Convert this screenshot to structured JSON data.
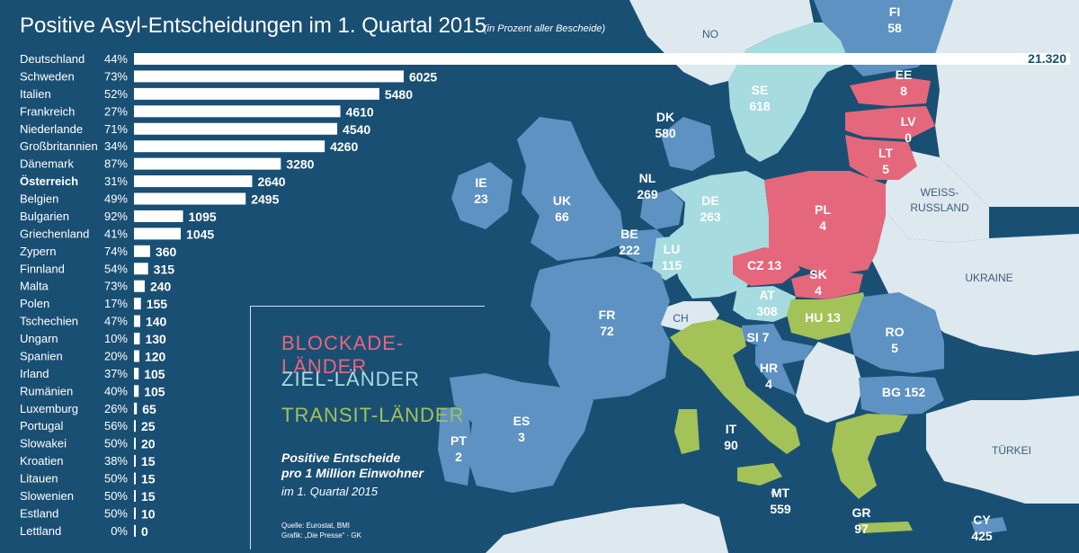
{
  "chart_data": {
    "type": "bar",
    "title": "Positive Asyl-Entscheidungen im 1. Quartal 2015",
    "subtitle": "(in Prozent aller Bescheide)",
    "categories": [
      "Deutschland",
      "Schweden",
      "Italien",
      "Frankreich",
      "Niederlande",
      "Großbritannien",
      "Dänemark",
      "Österreich",
      "Belgien",
      "Bulgarien",
      "Griechenland",
      "Zypern",
      "Finnland",
      "Malta",
      "Polen",
      "Tschechien",
      "Ungarn",
      "Spanien",
      "Irland",
      "Rumänien",
      "Luxemburg",
      "Portugal",
      "Slowakei",
      "Kroatien",
      "Litauen",
      "Slowenien",
      "Estland",
      "Lettland"
    ],
    "percentages": [
      "44%",
      "73%",
      "52%",
      "27%",
      "71%",
      "34%",
      "87%",
      "31%",
      "49%",
      "92%",
      "41%",
      "74%",
      "54%",
      "73%",
      "17%",
      "47%",
      "10%",
      "20%",
      "37%",
      "40%",
      "26%",
      "56%",
      "50%",
      "38%",
      "50%",
      "50%",
      "50%",
      "0%"
    ],
    "values": [
      21320,
      6025,
      5480,
      4610,
      4540,
      4260,
      3280,
      2640,
      2495,
      1095,
      1045,
      360,
      315,
      240,
      155,
      140,
      130,
      120,
      105,
      105,
      65,
      25,
      20,
      15,
      15,
      15,
      10,
      0
    ],
    "value_labels": [
      "21.320",
      "6025",
      "5480",
      "4610",
      "4540",
      "4260",
      "3280",
      "2640",
      "2495",
      "1095",
      "1045",
      "360",
      "315",
      "240",
      "155",
      "140",
      "130",
      "120",
      "105",
      "105",
      "65",
      "25",
      "20",
      "15",
      "15",
      "15",
      "10",
      "0"
    ],
    "highlight": "Österreich"
  },
  "map": {
    "countries": [
      {
        "code": "FI",
        "value": "58",
        "group": "other"
      },
      {
        "code": "NO",
        "value": "",
        "group": "none"
      },
      {
        "code": "SE",
        "value": "618",
        "group": "ziel"
      },
      {
        "code": "EE",
        "value": "8",
        "group": "blockade"
      },
      {
        "code": "LV",
        "value": "0",
        "group": "blockade"
      },
      {
        "code": "LT",
        "value": "5",
        "group": "blockade"
      },
      {
        "code": "DK",
        "value": "580",
        "group": "other"
      },
      {
        "code": "IE",
        "value": "23",
        "group": "other"
      },
      {
        "code": "UK",
        "value": "66",
        "group": "other"
      },
      {
        "code": "NL",
        "value": "269",
        "group": "other"
      },
      {
        "code": "DE",
        "value": "263",
        "group": "ziel"
      },
      {
        "code": "PL",
        "value": "4",
        "group": "blockade"
      },
      {
        "code": "BE",
        "value": "222",
        "group": "other"
      },
      {
        "code": "LU",
        "value": "115",
        "group": "ziel"
      },
      {
        "code": "CZ",
        "value": "13",
        "group": "blockade"
      },
      {
        "code": "SK",
        "value": "4",
        "group": "blockade"
      },
      {
        "code": "AT",
        "value": "308",
        "group": "ziel"
      },
      {
        "code": "HU",
        "value": "13",
        "group": "transit"
      },
      {
        "code": "CH",
        "value": "",
        "group": "none"
      },
      {
        "code": "FR",
        "value": "72",
        "group": "other"
      },
      {
        "code": "SI",
        "value": "7",
        "group": "other"
      },
      {
        "code": "RO",
        "value": "5",
        "group": "other"
      },
      {
        "code": "HR",
        "value": "4",
        "group": "other"
      },
      {
        "code": "BG",
        "value": "152",
        "group": "other"
      },
      {
        "code": "IT",
        "value": "90",
        "group": "transit"
      },
      {
        "code": "ES",
        "value": "3",
        "group": "other"
      },
      {
        "code": "PT",
        "value": "2",
        "group": "other"
      },
      {
        "code": "MT",
        "value": "559",
        "group": "other"
      },
      {
        "code": "GR",
        "value": "97",
        "group": "transit"
      },
      {
        "code": "CY",
        "value": "425",
        "group": "other"
      }
    ],
    "region_labels": [
      "WEISS-",
      "RUSSLAND",
      "UKRAINE",
      "TÜRKEI"
    ]
  },
  "legend": {
    "blockade": "BLOCKADE-LÄNDER",
    "ziel": "ZIEL-LÄNDER",
    "transit": "TRANSIT-LÄNDER",
    "title_line1": "Positive Entscheide",
    "title_line2": "pro 1 Million Einwohner",
    "subtitle": "im 1. Quartal 2015",
    "source_line1": "Quelle: Eurostat, BMI",
    "source_line2": "Grafik: „Die Presse“ · GK"
  },
  "colors": {
    "sea": "#1a4f74",
    "other": "#5e92c2",
    "ziel": "#a6dbe0",
    "blockade": "#e5677b",
    "transit": "#a3c257",
    "nonmember": "#dde8ef",
    "blockade_text": "#e5677b",
    "ziel_text": "#a6dbe0",
    "transit_text": "#a3c257"
  }
}
